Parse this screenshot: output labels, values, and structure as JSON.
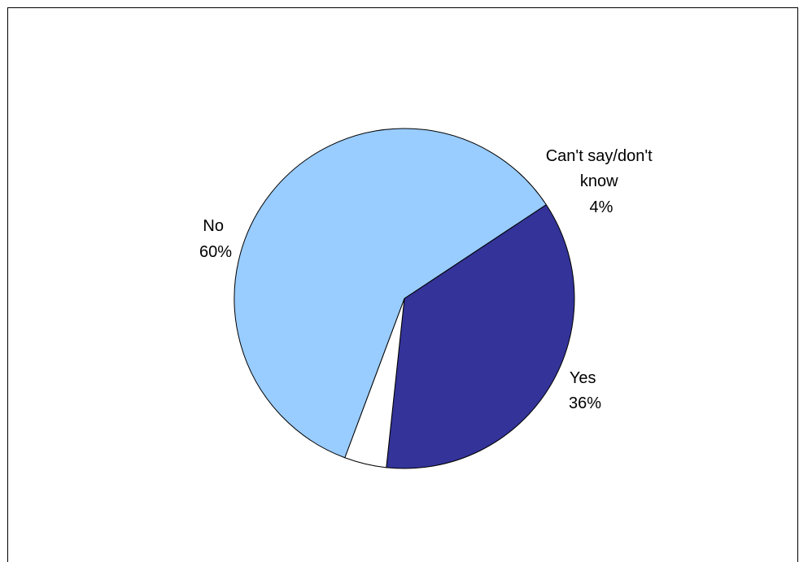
{
  "chart_data": {
    "type": "pie",
    "title": "",
    "slices": [
      {
        "label": "Yes",
        "value": 36,
        "display": "36%",
        "color": "#333399"
      },
      {
        "label": "Can't say/don't know",
        "value": 4,
        "display": "4%",
        "color": "#ffffff"
      },
      {
        "label": "No",
        "value": 60,
        "display": "60%",
        "color": "#99ccff"
      }
    ],
    "legend": "none",
    "slice_border_color": "#000000"
  }
}
